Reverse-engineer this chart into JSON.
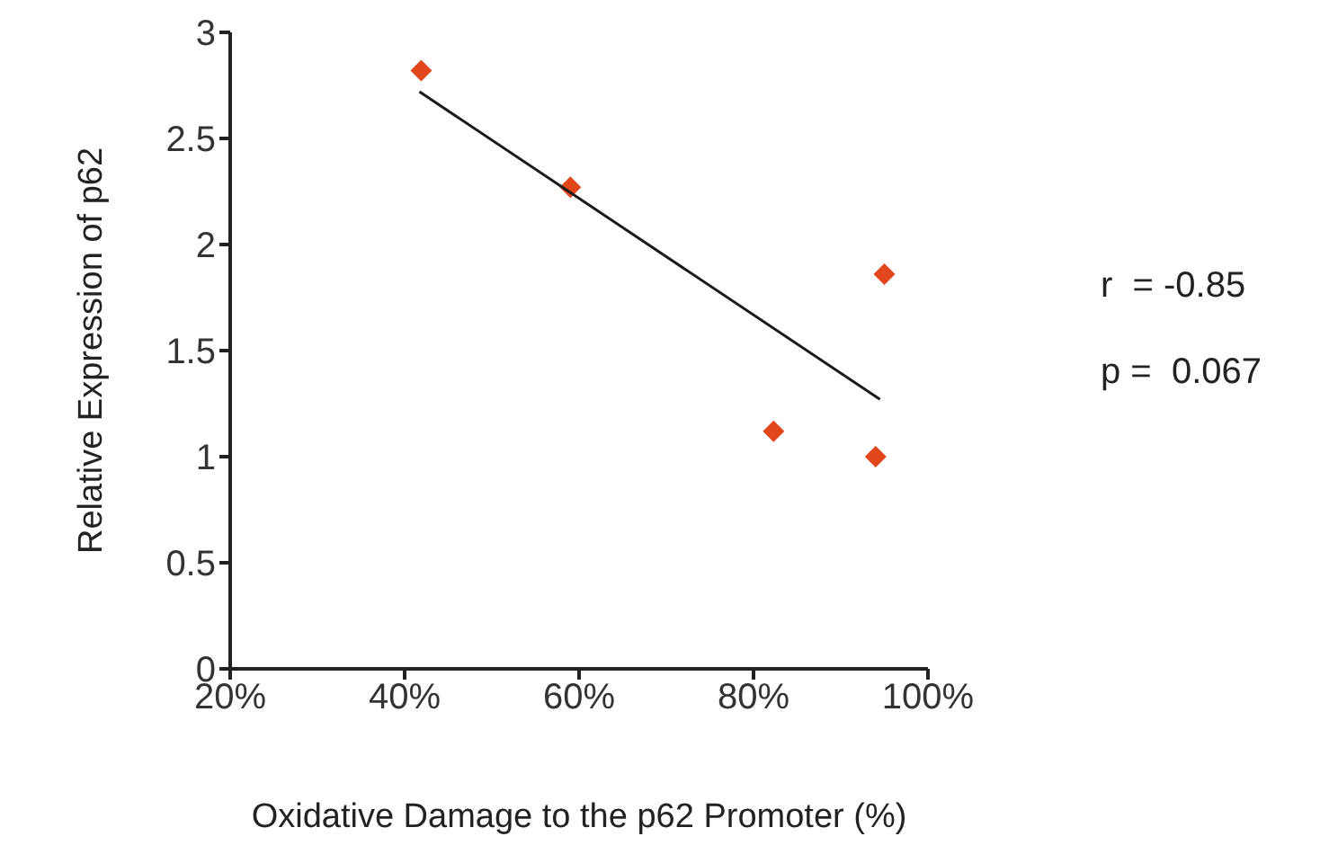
{
  "chart_data": {
    "type": "scatter",
    "xlabel": "Oxidative Damage to the p62 Promoter (%)",
    "ylabel": "Relative Expression of p62",
    "xlim": [
      20,
      100
    ],
    "xticks": [
      {
        "value": 20,
        "label": "20%"
      },
      {
        "value": 40,
        "label": "40%"
      },
      {
        "value": 60,
        "label": "60%"
      },
      {
        "value": 80,
        "label": "80%"
      },
      {
        "value": 100,
        "label": "100%"
      }
    ],
    "ylim": [
      0,
      3
    ],
    "yticks": [
      0,
      0.5,
      1,
      1.5,
      2,
      2.5,
      3
    ],
    "grid": false,
    "legend": false,
    "marker": "diamond",
    "series": [
      {
        "color": "#e2461c",
        "x": [
          41.9,
          59.0,
          82.3,
          94.0,
          95.0
        ],
        "values": [
          2.82,
          2.27,
          1.12,
          1.0,
          1.86
        ]
      },
      {
        "type": "line",
        "color": "#1a1a1a",
        "marker": "none",
        "x": [
          41.7,
          94.5
        ],
        "values": [
          2.72,
          1.27
        ]
      }
    ],
    "annotations": [
      "r  = -0.85",
      "p =  0.067"
    ]
  }
}
